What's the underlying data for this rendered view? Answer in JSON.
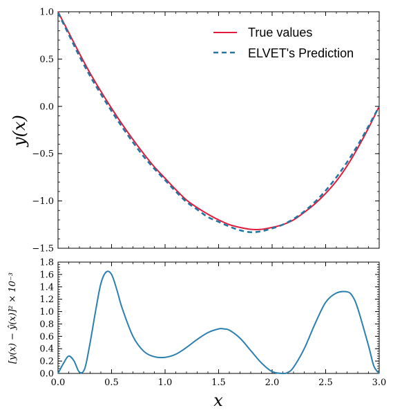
{
  "chart_data": [
    {
      "type": "line",
      "panel": "top",
      "ylabel": "y(x)",
      "xlim": [
        0,
        3
      ],
      "ylim": [
        -1.5,
        1.0
      ],
      "yticks": [
        -1.5,
        -1.0,
        -0.5,
        0.0,
        0.5,
        1.0
      ],
      "ytick_labels": [
        "−1.5",
        "−1.0",
        "−0.5",
        "0.0",
        "0.5",
        "1.0"
      ],
      "legend_position": "top-right",
      "grid": false,
      "series": [
        {
          "name": "True values",
          "color": "#e31a3c",
          "style": "solid",
          "x": [
            0.0,
            0.1,
            0.2,
            0.3,
            0.4,
            0.5,
            0.6,
            0.7,
            0.8,
            0.9,
            1.0,
            1.1,
            1.2,
            1.3,
            1.4,
            1.5,
            1.6,
            1.7,
            1.8,
            1.9,
            2.0,
            2.1,
            2.2,
            2.3,
            2.4,
            2.5,
            2.6,
            2.7,
            2.8,
            2.9,
            3.0
          ],
          "y": [
            1.0,
            0.78,
            0.56,
            0.35,
            0.16,
            -0.02,
            -0.19,
            -0.35,
            -0.5,
            -0.64,
            -0.76,
            -0.88,
            -0.99,
            -1.07,
            -1.14,
            -1.2,
            -1.25,
            -1.28,
            -1.3,
            -1.3,
            -1.28,
            -1.25,
            -1.2,
            -1.12,
            -1.03,
            -0.92,
            -0.79,
            -0.63,
            -0.44,
            -0.23,
            0.0
          ]
        },
        {
          "name": "ELVET's Prediction",
          "color": "#1f77a4",
          "style": "dashed",
          "x": [
            0.0,
            0.1,
            0.2,
            0.3,
            0.4,
            0.5,
            0.6,
            0.7,
            0.8,
            0.9,
            1.0,
            1.1,
            1.2,
            1.3,
            1.4,
            1.5,
            1.6,
            1.7,
            1.8,
            1.9,
            2.0,
            2.1,
            2.2,
            2.3,
            2.4,
            2.5,
            2.6,
            2.7,
            2.8,
            2.9,
            3.0
          ],
          "y": [
            0.99,
            0.76,
            0.53,
            0.32,
            0.13,
            -0.05,
            -0.22,
            -0.38,
            -0.53,
            -0.66,
            -0.78,
            -0.9,
            -1.01,
            -1.09,
            -1.17,
            -1.22,
            -1.27,
            -1.31,
            -1.33,
            -1.32,
            -1.29,
            -1.25,
            -1.19,
            -1.11,
            -1.01,
            -0.89,
            -0.75,
            -0.59,
            -0.41,
            -0.21,
            0.0
          ]
        }
      ]
    },
    {
      "type": "line",
      "panel": "bottom",
      "xlabel": "x",
      "ylabel": "[y(x) − ŷ(x)]² × 10⁻³",
      "xlim": [
        0,
        3
      ],
      "ylim": [
        0,
        1.8
      ],
      "xticks": [
        0.0,
        0.5,
        1.0,
        1.5,
        2.0,
        2.5,
        3.0
      ],
      "xtick_labels": [
        "0.0",
        "0.5",
        "1.0",
        "1.5",
        "2.0",
        "2.5",
        "3.0"
      ],
      "yticks": [
        0.0,
        0.2,
        0.4,
        0.6,
        0.8,
        1.0,
        1.2,
        1.4,
        1.6,
        1.8
      ],
      "ytick_labels": [
        "0.0",
        "0.2",
        "0.4",
        "0.6",
        "0.8",
        "1.0",
        "1.2",
        "1.4",
        "1.6",
        "1.8"
      ],
      "grid": false,
      "series": [
        {
          "color": "#2a7fb0",
          "style": "solid",
          "x": [
            0.0,
            0.05,
            0.1,
            0.15,
            0.2,
            0.25,
            0.3,
            0.35,
            0.4,
            0.45,
            0.5,
            0.55,
            0.6,
            0.7,
            0.8,
            0.9,
            1.0,
            1.1,
            1.2,
            1.3,
            1.4,
            1.5,
            1.55,
            1.6,
            1.7,
            1.8,
            1.9,
            2.0,
            2.1,
            2.15,
            2.2,
            2.3,
            2.4,
            2.5,
            2.6,
            2.7,
            2.75,
            2.8,
            2.9,
            2.95,
            3.0
          ],
          "y": [
            0.0,
            0.16,
            0.28,
            0.2,
            0.02,
            0.08,
            0.5,
            1.0,
            1.45,
            1.64,
            1.6,
            1.35,
            1.05,
            0.6,
            0.36,
            0.27,
            0.26,
            0.31,
            0.42,
            0.55,
            0.66,
            0.72,
            0.72,
            0.7,
            0.57,
            0.37,
            0.17,
            0.03,
            0.0,
            0.02,
            0.1,
            0.4,
            0.8,
            1.15,
            1.3,
            1.32,
            1.25,
            1.05,
            0.45,
            0.12,
            0.0
          ]
        }
      ]
    }
  ]
}
